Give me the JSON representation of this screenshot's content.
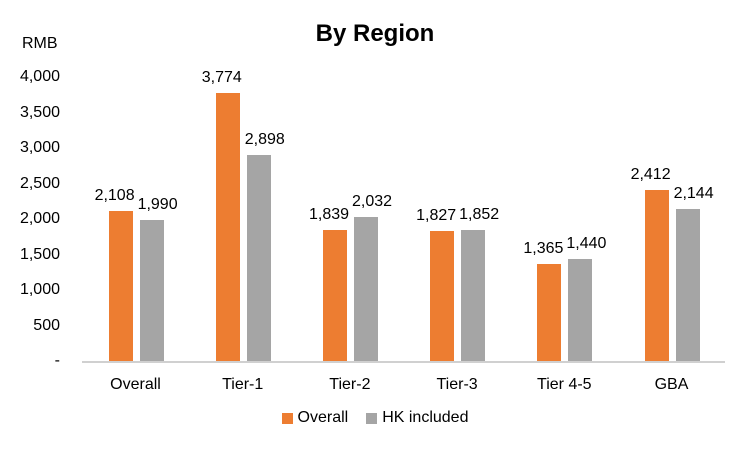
{
  "chart_data": {
    "type": "bar",
    "title": "By Region",
    "ylabel": "RMB",
    "xlabel": "",
    "categories": [
      "Overall",
      "Tier-1",
      "Tier-2",
      "Tier-3",
      "Tier 4-5",
      "GBA"
    ],
    "series": [
      {
        "name": "Overall",
        "color": "#ED7D31",
        "values": [
          2108,
          3774,
          1839,
          1827,
          1365,
          2412
        ],
        "labels": [
          "2,108",
          "3,774",
          "1,839",
          "1,827",
          "1,365",
          "2,412"
        ]
      },
      {
        "name": "HK included",
        "color": "#A5A5A5",
        "values": [
          1990,
          2898,
          2032,
          1852,
          1440,
          2144
        ],
        "labels": [
          "1,990",
          "2,898",
          "2,032",
          "1,852",
          "1,440",
          "2,144"
        ]
      }
    ],
    "ylim": [
      0,
      4000
    ],
    "yticks": [
      "-",
      "500",
      "1,000",
      "1,500",
      "2,000",
      "2,500",
      "3,000",
      "3,500",
      "4,000"
    ],
    "grid": false,
    "legend_position": "bottom"
  }
}
